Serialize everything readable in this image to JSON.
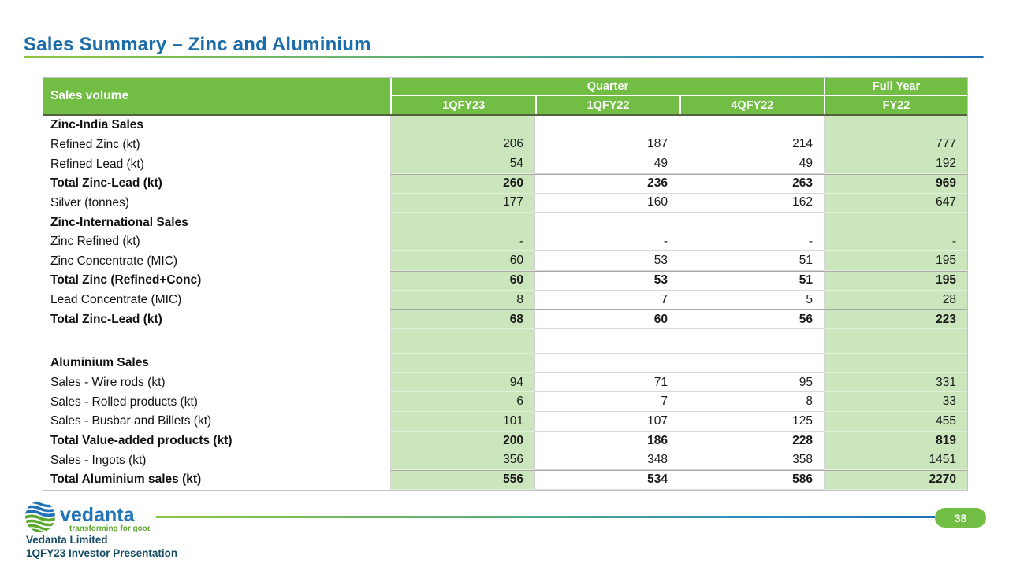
{
  "slide": {
    "title": "Sales Summary – Zinc and Aluminium",
    "page_number": "38"
  },
  "logo": {
    "brand": "vedanta",
    "tagline": "transforming for good"
  },
  "footer": {
    "line1": "Vedanta Limited",
    "line2": "1QFY23 Investor Presentation"
  },
  "colors": {
    "title_blue": "#1B6CA8",
    "header_green": "#72BE44",
    "cell_light_green": "#CBE5BC",
    "gradient_green": "#8CC63F",
    "gradient_blue": "#1F6FB5",
    "footer_text_blue": "#174E66",
    "badge_green": "#72BE44",
    "logo_blue": "#2173B8",
    "logo_green": "#5CA92F"
  },
  "table": {
    "corner_label": "Sales volume",
    "group_headers": [
      {
        "label": "Quarter",
        "span": 3
      },
      {
        "label": "Full Year",
        "span": 1
      }
    ],
    "column_headers": [
      "1QFY23",
      "1QFY22",
      "4QFY22",
      "FY22"
    ],
    "rows": [
      {
        "label": "Zinc-India Sales",
        "type": "section",
        "values": [
          "",
          "",
          "",
          ""
        ]
      },
      {
        "label": "Refined Zinc (kt)",
        "type": "data",
        "values": [
          "206",
          "187",
          "214",
          "777"
        ]
      },
      {
        "label": "Refined Lead (kt)",
        "type": "data",
        "values": [
          "54",
          "49",
          "49",
          "192"
        ]
      },
      {
        "label": "Total Zinc-Lead (kt)",
        "type": "total",
        "values": [
          "260",
          "236",
          "263",
          "969"
        ]
      },
      {
        "label": "Silver (tonnes)",
        "type": "data",
        "values": [
          "177",
          "160",
          "162",
          "647"
        ]
      },
      {
        "label": "Zinc-International Sales",
        "type": "section",
        "values": [
          "",
          "",
          "",
          ""
        ]
      },
      {
        "label": "Zinc Refined (kt)",
        "type": "data",
        "values": [
          "-",
          "-",
          "-",
          "-"
        ]
      },
      {
        "label": "Zinc Concentrate (MIC)",
        "type": "data",
        "values": [
          "60",
          "53",
          "51",
          "195"
        ]
      },
      {
        "label": "Total Zinc (Refined+Conc)",
        "type": "total",
        "values": [
          "60",
          "53",
          "51",
          "195"
        ]
      },
      {
        "label": "Lead Concentrate (MIC)",
        "type": "data",
        "values": [
          "8",
          "7",
          "5",
          "28"
        ]
      },
      {
        "label": "Total Zinc-Lead (kt)",
        "type": "total",
        "values": [
          "68",
          "60",
          "56",
          "223"
        ]
      },
      {
        "label": "",
        "type": "empty",
        "values": [
          "",
          "",
          "",
          ""
        ]
      },
      {
        "label": "Aluminium Sales",
        "type": "section",
        "values": [
          "",
          "",
          "",
          ""
        ]
      },
      {
        "label": "Sales - Wire rods (kt)",
        "type": "data",
        "values": [
          "94",
          "71",
          "95",
          "331"
        ]
      },
      {
        "label": "Sales - Rolled products (kt)",
        "type": "data",
        "values": [
          "6",
          "7",
          "8",
          "33"
        ]
      },
      {
        "label": "Sales - Busbar and Billets (kt)",
        "type": "data",
        "values": [
          "101",
          "107",
          "125",
          "455"
        ]
      },
      {
        "label": "Total Value-added products (kt)",
        "type": "total",
        "values": [
          "200",
          "186",
          "228",
          "819"
        ]
      },
      {
        "label": "Sales - Ingots (kt)",
        "type": "data",
        "values": [
          "356",
          "348",
          "358",
          "1451"
        ]
      },
      {
        "label": "Total Aluminium sales (kt)",
        "type": "total",
        "values": [
          "556",
          "534",
          "586",
          "2270"
        ]
      }
    ]
  }
}
